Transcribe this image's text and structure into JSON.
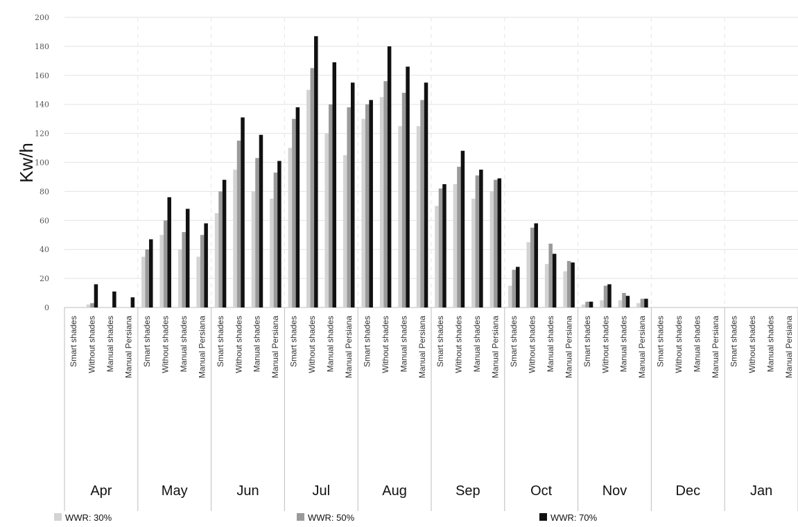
{
  "chart_data": {
    "type": "bar",
    "title": "",
    "ylabel": "Kw/h",
    "xlabel": "",
    "ylim": [
      0,
      200
    ],
    "yticks": [
      0,
      20,
      40,
      60,
      80,
      100,
      120,
      140,
      160,
      180,
      200
    ],
    "grid": true,
    "legend_position": "bottom",
    "colors": [
      "#d3d3d3",
      "#9a9a9a",
      "#111111"
    ],
    "months": [
      "Apr",
      "May",
      "Jun",
      "Jul",
      "Aug",
      "Sep",
      "Oct",
      "Nov",
      "Dec",
      "Jan"
    ],
    "subcategories": [
      "Smart shades",
      "Without shades",
      "Manual shades",
      "Manual Persiana"
    ],
    "series": [
      {
        "name": "WWR: 30%",
        "values": [
          0,
          2,
          0,
          0,
          35,
          50,
          40,
          35,
          65,
          95,
          80,
          75,
          110,
          150,
          120,
          105,
          130,
          145,
          125,
          125,
          70,
          85,
          75,
          80,
          15,
          45,
          30,
          25,
          2,
          5,
          5,
          3,
          0,
          0,
          0,
          0,
          0,
          0,
          0,
          0
        ]
      },
      {
        "name": "WWR: 50%",
        "values": [
          0,
          3,
          0,
          0,
          40,
          60,
          52,
          50,
          80,
          115,
          103,
          93,
          130,
          165,
          140,
          138,
          140,
          156,
          148,
          143,
          82,
          97,
          91,
          88,
          26,
          55,
          44,
          32,
          4,
          15,
          10,
          6,
          0,
          0,
          0,
          0,
          0,
          0,
          0,
          0
        ]
      },
      {
        "name": "WWR: 70%",
        "values": [
          0,
          16,
          11,
          7,
          47,
          76,
          68,
          58,
          88,
          131,
          119,
          101,
          138,
          187,
          169,
          155,
          143,
          180,
          166,
          155,
          85,
          108,
          95,
          89,
          28,
          58,
          37,
          31,
          4,
          16,
          8,
          6,
          0,
          0,
          0,
          0,
          0,
          0,
          0,
          0
        ]
      }
    ]
  }
}
